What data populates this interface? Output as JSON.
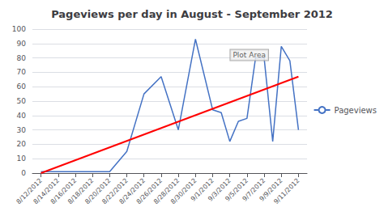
{
  "chart_data": {
    "type": "line",
    "title": "Pageviews per day in August - September 2012",
    "xlim": [
      -0.5,
      15.5
    ],
    "xticks": [
      {
        "value": 0,
        "label": "8/12/2012"
      },
      {
        "value": 1,
        "label": "8/14/2012"
      },
      {
        "value": 2,
        "label": "8/16/2012"
      },
      {
        "value": 3,
        "label": "8/18/2012"
      },
      {
        "value": 4,
        "label": "8/20/2012"
      },
      {
        "value": 5,
        "label": "8/22/2012"
      },
      {
        "value": 6,
        "label": "8/24/2012"
      },
      {
        "value": 7,
        "label": "8/26/2012"
      },
      {
        "value": 8,
        "label": "8/28/2012"
      },
      {
        "value": 9,
        "label": "8/30/2012"
      },
      {
        "value": 10,
        "label": "9/1/2012"
      },
      {
        "value": 11,
        "label": "9/3/2012"
      },
      {
        "value": 12,
        "label": "9/5/2012"
      },
      {
        "value": 13,
        "label": "9/7/2012"
      },
      {
        "value": 14,
        "label": "9/9/2012"
      },
      {
        "value": 15,
        "label": "9/11/2012"
      }
    ],
    "ylim": [
      0,
      100
    ],
    "yticks": [
      0,
      10,
      20,
      30,
      40,
      50,
      60,
      70,
      80,
      90,
      100
    ],
    "grid": true,
    "legend": "right",
    "series": [
      {
        "name": "Pageviews",
        "color": "#4472C4",
        "x": [
          0,
          1,
          2,
          3,
          4,
          5,
          6,
          7,
          8,
          9,
          10,
          10.5,
          11,
          11.5,
          12,
          12.5,
          13,
          13.5,
          14,
          14.5,
          15
        ],
        "values": [
          1,
          1,
          1,
          1,
          1,
          15,
          55,
          67,
          30,
          93,
          44,
          42,
          22,
          36,
          38,
          80,
          80,
          22,
          88,
          78,
          30
        ]
      },
      {
        "color": "#FF0000",
        "x": [
          0,
          15
        ],
        "values": [
          0,
          67
        ]
      }
    ],
    "annotations": [
      {
        "text": "Plot Area",
        "x": 10.8,
        "y": 82
      }
    ]
  }
}
